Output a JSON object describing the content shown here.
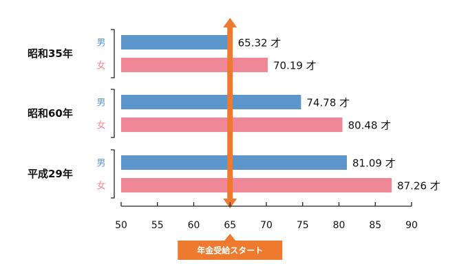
{
  "chart_data": {
    "type": "bar",
    "orientation": "horizontal",
    "groups": [
      {
        "label": "昭和35年",
        "bars": [
          {
            "sex": "男",
            "value": 65.32,
            "value_label": "65.32 才"
          },
          {
            "sex": "女",
            "value": 70.19,
            "value_label": "70.19 才"
          }
        ]
      },
      {
        "label": "昭和60年",
        "bars": [
          {
            "sex": "男",
            "value": 74.78,
            "value_label": "74.78 才"
          },
          {
            "sex": "女",
            "value": 80.48,
            "value_label": "80.48 才"
          }
        ]
      },
      {
        "label": "平成29年",
        "bars": [
          {
            "sex": "男",
            "value": 81.09,
            "value_label": "81.09 才"
          },
          {
            "sex": "女",
            "value": 87.26,
            "value_label": "87.26 才"
          }
        ]
      }
    ],
    "xlim": [
      50,
      90
    ],
    "xticks": [
      50,
      55,
      60,
      65,
      70,
      75,
      80,
      85,
      90
    ],
    "grid": false,
    "reference_line": {
      "value": 65,
      "label": "年金受給スタート"
    },
    "colors": {
      "男": "#5b95c9",
      "女": "#ef8796",
      "reference": "#ee7a2f"
    }
  }
}
